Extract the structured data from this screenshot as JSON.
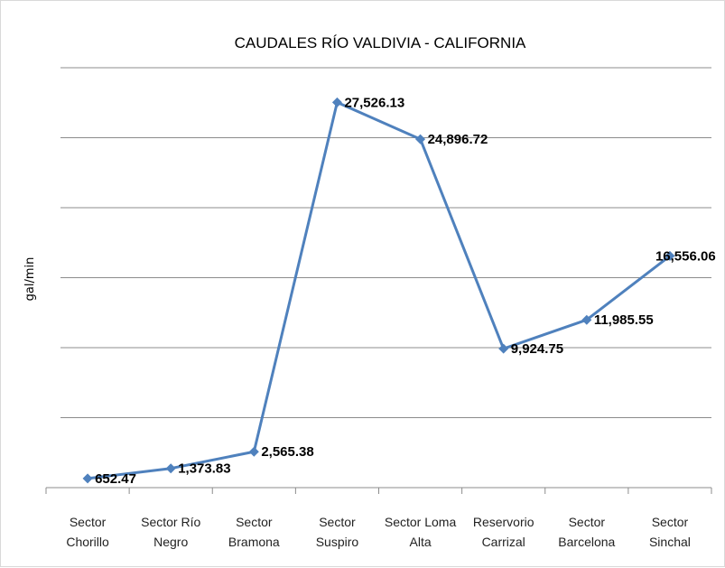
{
  "chart_data": {
    "type": "line",
    "title": "CAUDALES RÍO VALDIVIA - CALIFORNIA",
    "xlabel": "",
    "ylabel": "gal/min",
    "categories": [
      [
        "Sector",
        "Chorillo"
      ],
      [
        "Sector Río",
        "Negro"
      ],
      [
        "Sector",
        "Bramona"
      ],
      [
        "Sector",
        "Suspiro"
      ],
      [
        "Sector Loma",
        "Alta"
      ],
      [
        "Reservorio",
        "Carrizal"
      ],
      [
        "Sector",
        "Barcelona"
      ],
      [
        "Sector",
        "Sinchal"
      ]
    ],
    "values": [
      652.47,
      1373.83,
      2565.38,
      27526.13,
      24896.72,
      9924.75,
      11985.55,
      16556.06
    ],
    "value_labels": [
      "652.47",
      "1,373.83",
      "2,565.38",
      "27,526.13",
      "24,896.72",
      "9,924.75",
      "11,985.55",
      "16,556.06"
    ],
    "ylim": [
      0,
      30000
    ],
    "y_gridlines": [
      5000,
      10000,
      15000,
      20000,
      25000,
      30000
    ],
    "y_tick_labels_shown": false,
    "grid": true,
    "legend": "none",
    "colors": {
      "line": "#4f81bd",
      "marker": "#4f81bd",
      "grid": "#8c8c8c",
      "axis": "#8c8c8c"
    }
  }
}
